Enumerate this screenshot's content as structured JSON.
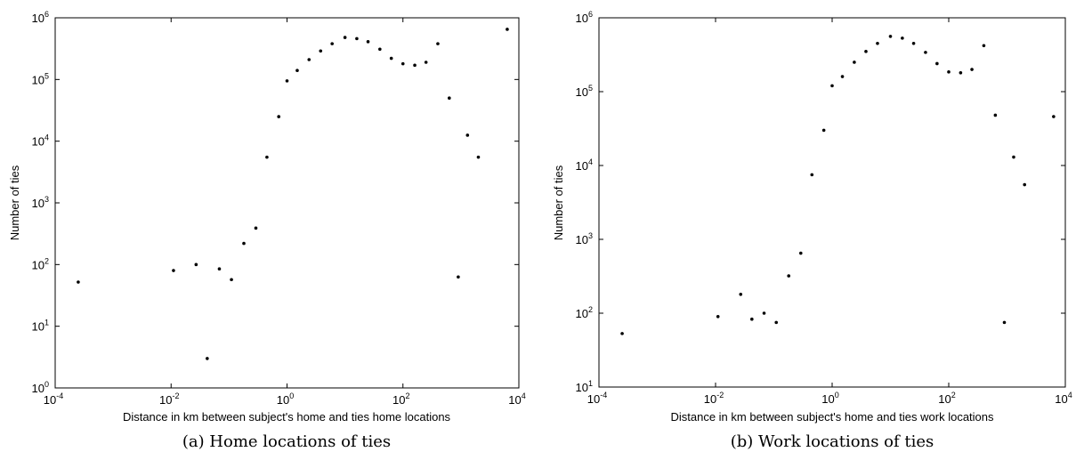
{
  "chart_data": [
    {
      "type": "scatter",
      "caption": "(a) Home locations of ties",
      "xlabel": "Distance in km between subject's home and ties home locations",
      "ylabel": "Number of ties",
      "xscale": "log",
      "yscale": "log",
      "xlim": [
        0.0001,
        10000
      ],
      "ylim": [
        1,
        1000000
      ],
      "xtick_exponents": [
        "-4",
        "-2",
        "0",
        "2",
        "4"
      ],
      "ytick_exponents": [
        "0",
        "1",
        "2",
        "3",
        "4",
        "5",
        "6"
      ],
      "tick_base": "10",
      "grid": false,
      "points": [
        [
          0.00025,
          52
        ],
        [
          0.011,
          80
        ],
        [
          0.027,
          100
        ],
        [
          0.042,
          3
        ],
        [
          0.068,
          85
        ],
        [
          0.11,
          57
        ],
        [
          0.18,
          220
        ],
        [
          0.29,
          390
        ],
        [
          0.45,
          5500
        ],
        [
          0.72,
          25000
        ],
        [
          1.0,
          95000
        ],
        [
          1.5,
          140000
        ],
        [
          2.4,
          210000
        ],
        [
          3.8,
          290000
        ],
        [
          6.0,
          380000
        ],
        [
          10,
          480000
        ],
        [
          16,
          460000
        ],
        [
          25,
          410000
        ],
        [
          40,
          310000
        ],
        [
          63,
          220000
        ],
        [
          100,
          180000
        ],
        [
          160,
          170000
        ],
        [
          250,
          190000
        ],
        [
          400,
          380000
        ],
        [
          630,
          50000
        ],
        [
          900,
          63
        ],
        [
          1300,
          12500
        ],
        [
          2000,
          5500
        ],
        [
          6300,
          650000
        ]
      ]
    },
    {
      "type": "scatter",
      "caption": "(b) Work locations of ties",
      "xlabel": "Distance in km between subject's home and ties work locations",
      "ylabel": "Number of ties",
      "xscale": "log",
      "yscale": "log",
      "xlim": [
        0.0001,
        10000
      ],
      "ylim": [
        10,
        1000000
      ],
      "xtick_exponents": [
        "-4",
        "-2",
        "0",
        "2",
        "4"
      ],
      "ytick_exponents": [
        "1",
        "2",
        "3",
        "4",
        "5",
        "6"
      ],
      "tick_base": "10",
      "grid": false,
      "points": [
        [
          0.00025,
          53
        ],
        [
          0.011,
          90
        ],
        [
          0.027,
          180
        ],
        [
          0.042,
          83
        ],
        [
          0.068,
          100
        ],
        [
          0.11,
          75
        ],
        [
          0.18,
          320
        ],
        [
          0.29,
          650
        ],
        [
          0.45,
          7500
        ],
        [
          0.72,
          30000
        ],
        [
          1.0,
          120000
        ],
        [
          1.5,
          160000
        ],
        [
          2.4,
          250000
        ],
        [
          3.8,
          350000
        ],
        [
          6.0,
          450000
        ],
        [
          10,
          560000
        ],
        [
          16,
          530000
        ],
        [
          25,
          450000
        ],
        [
          40,
          340000
        ],
        [
          63,
          240000
        ],
        [
          100,
          185000
        ],
        [
          160,
          180000
        ],
        [
          250,
          200000
        ],
        [
          400,
          420000
        ],
        [
          630,
          48000
        ],
        [
          900,
          75
        ],
        [
          1300,
          13000
        ],
        [
          2000,
          5500
        ],
        [
          6300,
          46000
        ]
      ]
    }
  ]
}
